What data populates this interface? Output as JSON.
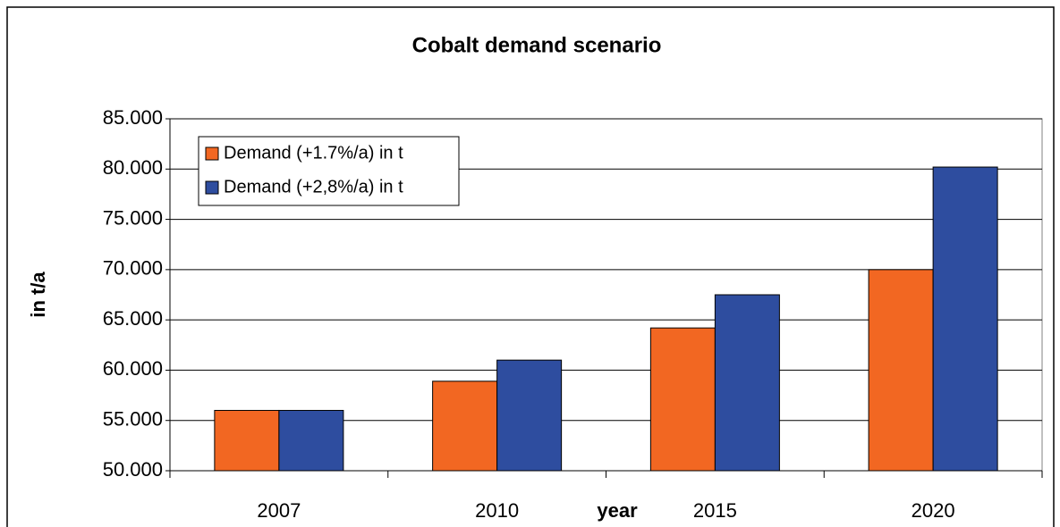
{
  "chart_data": {
    "type": "bar",
    "title": "Cobalt demand scenario",
    "x_label": "year",
    "y_label": "in t/a",
    "categories": [
      "2007",
      "2010",
      "2015",
      "2020"
    ],
    "series": [
      {
        "name": "Demand (+1.7%/a) in t",
        "color": "#f26722",
        "values": [
          56000,
          58900,
          64200,
          70000
        ]
      },
      {
        "name": "Demand (+2,8%/a) in t",
        "color": "#2e4d9f",
        "values": [
          56000,
          61000,
          67500,
          80200
        ]
      }
    ],
    "ylim": [
      50000,
      85000
    ],
    "yticks": [
      {
        "value": 50000,
        "label": "50.000"
      },
      {
        "value": 55000,
        "label": "55.000"
      },
      {
        "value": 60000,
        "label": "60.000"
      },
      {
        "value": 65000,
        "label": "65.000"
      },
      {
        "value": 70000,
        "label": "70.000"
      },
      {
        "value": 75000,
        "label": "75.000"
      },
      {
        "value": 80000,
        "label": "80.000"
      },
      {
        "value": 85000,
        "label": "85.000"
      }
    ],
    "grid": true,
    "legend": "top-left"
  }
}
